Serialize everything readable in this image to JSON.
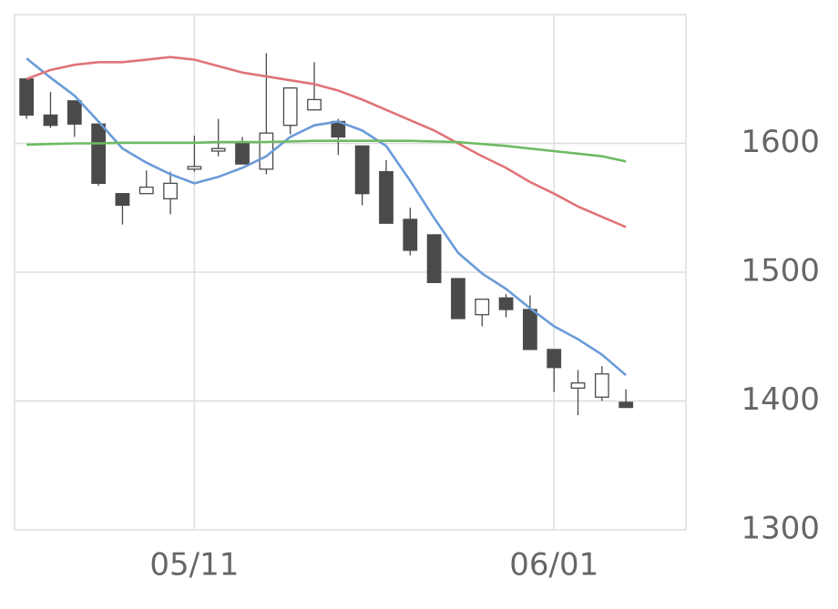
{
  "chart_data": {
    "type": "candlestick",
    "categories": [
      null,
      null,
      null,
      null,
      null,
      null,
      null,
      "05/11",
      null,
      null,
      null,
      null,
      null,
      null,
      null,
      null,
      null,
      null,
      null,
      null,
      null,
      null,
      "06/01",
      null,
      null,
      null
    ],
    "open": [
      1650,
      1622,
      1633,
      1615,
      1561,
      1561,
      1557,
      1580,
      1594,
      1600,
      1580,
      1614,
      1626,
      1617,
      1598,
      1578,
      1541,
      1529,
      1495,
      1467,
      1480,
      1471,
      1440,
      1410,
      1403,
      1399
    ],
    "high": [
      1650,
      1640,
      1633,
      1615,
      1561,
      1579,
      1578,
      1606,
      1619,
      1605,
      1670,
      1643,
      1663,
      1619,
      1598,
      1587,
      1550,
      1529,
      1495,
      1479,
      1483,
      1482,
      1440,
      1424,
      1427,
      1409
    ],
    "low": [
      1619,
      1612,
      1605,
      1567,
      1537,
      1561,
      1545,
      1578,
      1590,
      1584,
      1576,
      1607,
      1626,
      1591,
      1552,
      1538,
      1513,
      1492,
      1464,
      1458,
      1465,
      1440,
      1407,
      1389,
      1400,
      1395
    ],
    "close": [
      1622,
      1614,
      1615,
      1569,
      1552,
      1566,
      1569,
      1582,
      1596,
      1584,
      1608,
      1643,
      1634,
      1605,
      1561,
      1538,
      1517,
      1492,
      1464,
      1479,
      1471,
      1440,
      1426,
      1414,
      1421,
      1395
    ],
    "up_color": "#ffffff",
    "down_color": "#4a4a4a",
    "series": [
      {
        "color": "#6a9bd8",
        "values": [
          1666,
          1651,
          1637,
          1617,
          1596,
          1585,
          1576,
          1569,
          1574,
          1581,
          1590,
          1605,
          1614,
          1617,
          1610,
          1598,
          1571,
          1542,
          1515,
          1499,
          1487,
          1472,
          1458,
          1448,
          1436,
          1420
        ]
      },
      {
        "color": "#e07478",
        "values": [
          1650,
          1657,
          1661,
          1663,
          1663,
          1665,
          1667,
          1665,
          1660,
          1655,
          1652,
          1649,
          1646,
          1641,
          1634,
          1626,
          1618,
          1610,
          1600,
          1590,
          1581,
          1570,
          1561,
          1551,
          1543,
          1535
        ]
      },
      {
        "color": "#6dbb63",
        "values": [
          1599,
          1599.5,
          1600,
          1600,
          1600.5,
          1600.5,
          1600.5,
          1600.5,
          1601,
          1601,
          1601,
          1601.5,
          1602,
          1602,
          1602,
          1602,
          1602,
          1601.5,
          1601,
          1599.5,
          1598,
          1596,
          1594,
          1592,
          1590,
          1586
        ]
      }
    ],
    "ylim": [
      1300,
      1700
    ],
    "yticks": [
      1300,
      1400,
      1500,
      1600
    ],
    "grid": true
  }
}
